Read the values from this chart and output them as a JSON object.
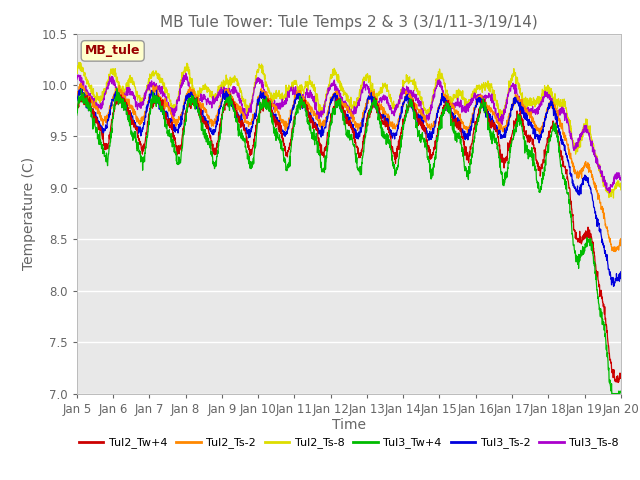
{
  "title": "MB Tule Tower: Tule Temps 2 & 3 (3/1/11-3/19/14)",
  "xlabel": "Time",
  "ylabel": "Temperature (C)",
  "ylim": [
    7.0,
    10.5
  ],
  "xlim": [
    0,
    15
  ],
  "xtick_labels": [
    "Jan 5",
    "Jan 6",
    "Jan 7",
    "Jan 8",
    "Jan 9",
    "Jan 10",
    "Jan 11",
    "Jan 12",
    "Jan 13",
    "Jan 14",
    "Jan 15",
    "Jan 16",
    "Jan 17",
    "Jan 18",
    "Jan 19",
    "Jan 20"
  ],
  "ytick_values": [
    7.0,
    7.5,
    8.0,
    8.5,
    9.0,
    9.5,
    10.0,
    10.5
  ],
  "series_colors": {
    "Tul2_Tw+4": "#cc0000",
    "Tul2_Ts-2": "#ff8800",
    "Tul2_Ts-8": "#dddd00",
    "Tul3_Tw+4": "#00bb00",
    "Tul3_Ts-2": "#0000dd",
    "Tul3_Ts-8": "#aa00cc"
  },
  "legend_label": "MB_tule",
  "background_color": "#ffffff",
  "plot_bg_color": "#e8e8e8",
  "grid_color": "#ffffff",
  "title_fontsize": 11,
  "axis_fontsize": 10,
  "tick_fontsize": 8.5
}
